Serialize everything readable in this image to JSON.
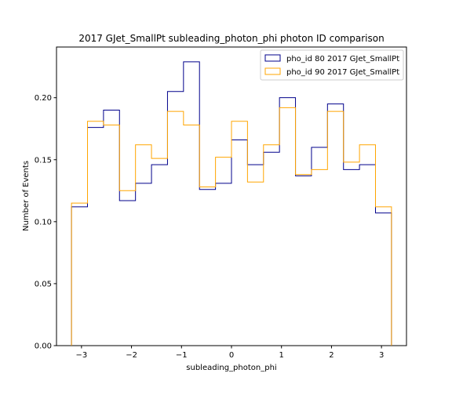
{
  "chart_data": {
    "type": "histogram-step",
    "title": "2017 GJet_SmallPt subleading_photon_phi photon ID comparison",
    "xlabel": "subleading_photon_phi",
    "ylabel": "Number of Events",
    "xlim": [
      -3.5,
      3.5
    ],
    "ylim": [
      0.0,
      0.2409
    ],
    "x_ticks": [
      -3,
      -2,
      -1,
      0,
      1,
      2,
      3
    ],
    "x_tick_labels": [
      "−3",
      "−2",
      "−1",
      "0",
      "1",
      "2",
      "3"
    ],
    "y_ticks": [
      0.0,
      0.05,
      0.1,
      0.15,
      0.2
    ],
    "y_tick_labels": [
      "0.00",
      "0.05",
      "0.10",
      "0.15",
      "0.20"
    ],
    "bin_edges": [
      -3.2,
      -2.88,
      -2.56,
      -2.24,
      -1.92,
      -1.6,
      -1.28,
      -0.96,
      -0.64,
      -0.32,
      0.0,
      0.32,
      0.64,
      0.96,
      1.28,
      1.6,
      1.92,
      2.24,
      2.56,
      2.88,
      3.2
    ],
    "series": [
      {
        "name": "pho_id 80 2017 GJet_SmallPt",
        "color": "#00008b",
        "values": [
          0.112,
          0.176,
          0.19,
          0.117,
          0.131,
          0.146,
          0.205,
          0.229,
          0.126,
          0.131,
          0.166,
          0.146,
          0.156,
          0.2,
          0.137,
          0.16,
          0.195,
          0.142,
          0.146,
          0.107
        ]
      },
      {
        "name": "pho_id 90 2017 GJet_SmallPt",
        "color": "#ffa500",
        "values": [
          0.115,
          0.181,
          0.178,
          0.125,
          0.162,
          0.151,
          0.189,
          0.178,
          0.128,
          0.152,
          0.181,
          0.132,
          0.162,
          0.192,
          0.138,
          0.142,
          0.189,
          0.148,
          0.162,
          0.112
        ]
      }
    ],
    "grid": false,
    "legend_position": "top-right"
  }
}
